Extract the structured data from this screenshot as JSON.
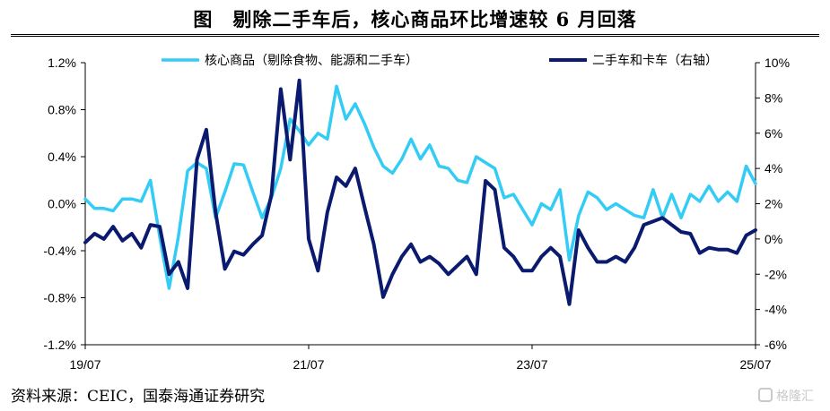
{
  "page": {
    "title": "图　剔除二手车后，核心商品环比增速较 6 月回落",
    "source": "资料来源：CEIC，国泰海通证券研究",
    "watermark": "格隆汇"
  },
  "chart_data": {
    "type": "line",
    "x_tick_labels": [
      "19/07",
      "21/07",
      "23/07",
      "25/07"
    ],
    "x": [
      "2019-07",
      "2019-08",
      "2019-09",
      "2019-10",
      "2019-11",
      "2019-12",
      "2020-01",
      "2020-02",
      "2020-03",
      "2020-04",
      "2020-05",
      "2020-06",
      "2020-07",
      "2020-08",
      "2020-09",
      "2020-10",
      "2020-11",
      "2020-12",
      "2021-01",
      "2021-02",
      "2021-03",
      "2021-04",
      "2021-05",
      "2021-06",
      "2021-07",
      "2021-08",
      "2021-09",
      "2021-10",
      "2021-11",
      "2021-12",
      "2022-01",
      "2022-02",
      "2022-03",
      "2022-04",
      "2022-05",
      "2022-06",
      "2022-07",
      "2022-08",
      "2022-09",
      "2022-10",
      "2022-11",
      "2022-12",
      "2023-01",
      "2023-02",
      "2023-03",
      "2023-04",
      "2023-05",
      "2023-06",
      "2023-07",
      "2023-08",
      "2023-09",
      "2023-10",
      "2023-11",
      "2023-12",
      "2024-01",
      "2024-02",
      "2024-03",
      "2024-04",
      "2024-05",
      "2024-06",
      "2024-07",
      "2024-08",
      "2024-09",
      "2024-10",
      "2024-11",
      "2024-12",
      "2025-01",
      "2025-02",
      "2025-03",
      "2025-04",
      "2025-05",
      "2025-06",
      "2025-07"
    ],
    "y_left": {
      "ylim": [
        -1.2,
        1.2
      ],
      "ticks": [
        "1.2%",
        "0.8%",
        "0.4%",
        "0.0%",
        "-0.4%",
        "-0.8%",
        "-1.2%"
      ]
    },
    "y_right": {
      "ylim": [
        -6,
        10
      ],
      "ticks": [
        "10%",
        "8%",
        "6%",
        "4%",
        "2%",
        "0%",
        "-2%",
        "-4%",
        "-6%"
      ]
    },
    "legend_position": "top",
    "series": [
      {
        "name": "核心商品（剔除食物、能源和二手车）",
        "axis": "left",
        "color": "#33ccf5",
        "values": [
          0.04,
          -0.04,
          -0.04,
          -0.06,
          0.04,
          0.04,
          0.02,
          0.2,
          -0.28,
          -0.72,
          -0.28,
          0.28,
          0.35,
          0.3,
          -0.12,
          0.1,
          0.34,
          0.33,
          0.1,
          -0.12,
          0.05,
          0.3,
          0.72,
          0.62,
          0.5,
          0.6,
          0.55,
          1.0,
          0.72,
          0.85,
          0.68,
          0.48,
          0.32,
          0.26,
          0.38,
          0.55,
          0.38,
          0.5,
          0.32,
          0.3,
          0.2,
          0.18,
          0.4,
          0.35,
          0.3,
          0.05,
          0.08,
          -0.05,
          -0.18,
          0.0,
          -0.05,
          0.12,
          -0.48,
          -0.1,
          0.1,
          0.05,
          -0.05,
          0.0,
          -0.05,
          -0.1,
          -0.12,
          0.12,
          -0.12,
          0.08,
          -0.12,
          0.08,
          0.02,
          0.15,
          0.02,
          0.1,
          0.02,
          0.32,
          0.17
        ]
      },
      {
        "name": "二手车和卡车（右轴）",
        "axis": "right",
        "color": "#0a1a6e",
        "values": [
          -0.2,
          0.3,
          0.0,
          0.7,
          -0.1,
          0.3,
          -0.5,
          0.8,
          0.7,
          -2.0,
          -1.3,
          -2.8,
          4.5,
          6.2,
          1.5,
          -1.7,
          -0.7,
          -0.9,
          -0.3,
          0.2,
          2.5,
          8.5,
          4.5,
          9.0,
          0.0,
          -1.8,
          1.5,
          3.5,
          3.0,
          4.0,
          1.8,
          -0.3,
          -3.3,
          -2.0,
          -1.0,
          -0.3,
          -1.3,
          -1.0,
          -1.4,
          -2.0,
          -1.5,
          -1.0,
          -2.0,
          3.3,
          2.8,
          -0.5,
          -1.0,
          -1.8,
          -1.8,
          -1.0,
          -0.5,
          -1.0,
          -3.7,
          0.5,
          -0.5,
          -1.3,
          -1.3,
          -1.0,
          -1.3,
          -0.5,
          0.8,
          1.0,
          1.2,
          0.8,
          0.4,
          0.3,
          -0.8,
          -0.5,
          -0.6,
          -0.6,
          -0.8,
          0.2,
          0.5
        ]
      }
    ]
  }
}
